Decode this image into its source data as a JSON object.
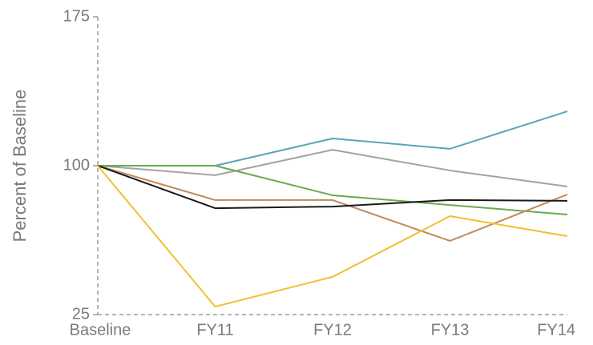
{
  "chart_data": {
    "type": "line",
    "y_label": "Percent of Baseline",
    "categories": [
      "Baseline",
      "FY11",
      "FY12",
      "FY13",
      "FY14"
    ],
    "series": [
      {
        "color": "#5ba3be",
        "values": [
          100,
          100,
          113.7,
          108.5,
          127.4
        ]
      },
      {
        "color": "#a3a3a3",
        "values": [
          100,
          95.2,
          108,
          97.6,
          89.5
        ]
      },
      {
        "color": "#6aaa50",
        "values": [
          100,
          100,
          85.1,
          80.2,
          75.4
        ]
      },
      {
        "color": "#c08a5e",
        "values": [
          100,
          82.7,
          82.7,
          62.1,
          85.5
        ]
      },
      {
        "color": "#1a1a1a",
        "values": [
          100,
          78.6,
          79.4,
          82.7,
          82.3
        ]
      },
      {
        "color": "#f0c030",
        "values": [
          100,
          29,
          44,
          74.6,
          64.5
        ]
      }
    ],
    "ylim": [
      25,
      175
    ],
    "yticks": [
      25,
      100,
      175
    ],
    "grid": false
  }
}
